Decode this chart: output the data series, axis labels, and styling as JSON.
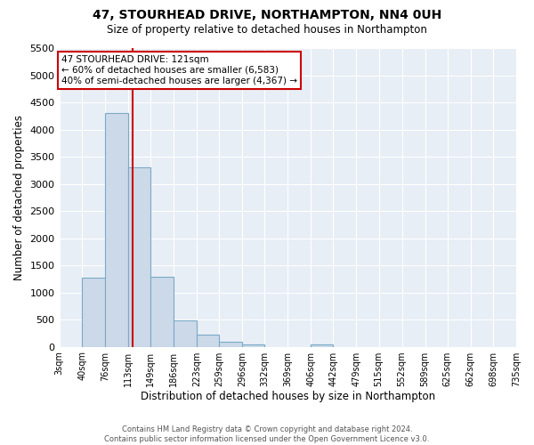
{
  "title": "47, STOURHEAD DRIVE, NORTHAMPTON, NN4 0UH",
  "subtitle": "Size of property relative to detached houses in Northampton",
  "xlabel": "Distribution of detached houses by size in Northampton",
  "ylabel": "Number of detached properties",
  "footer_lines": [
    "Contains HM Land Registry data © Crown copyright and database right 2024.",
    "Contains public sector information licensed under the Open Government Licence v3.0."
  ],
  "bin_edges": [
    3,
    40,
    76,
    113,
    149,
    186,
    223,
    259,
    296,
    332,
    369,
    406,
    442,
    479,
    515,
    552,
    589,
    625,
    662,
    698,
    735
  ],
  "bin_counts": [
    0,
    1270,
    4300,
    3300,
    1290,
    480,
    220,
    90,
    50,
    0,
    0,
    40,
    0,
    0,
    0,
    0,
    0,
    0,
    0,
    0
  ],
  "bar_color": "#ccd9e8",
  "bar_edge_color": "#7aaac8",
  "red_line_x": 121,
  "ylim": [
    0,
    5500
  ],
  "yticks": [
    0,
    500,
    1000,
    1500,
    2000,
    2500,
    3000,
    3500,
    4000,
    4500,
    5000,
    5500
  ],
  "annotation_box_text": "47 STOURHEAD DRIVE: 121sqm\n← 60% of detached houses are smaller (6,583)\n40% of semi-detached houses are larger (4,367) →",
  "annotation_box_edge_color": "#cc0000",
  "red_line_color": "#cc0000",
  "background_color": "#ffffff",
  "plot_bg_color": "#e8eef5",
  "grid_color": "#ffffff"
}
